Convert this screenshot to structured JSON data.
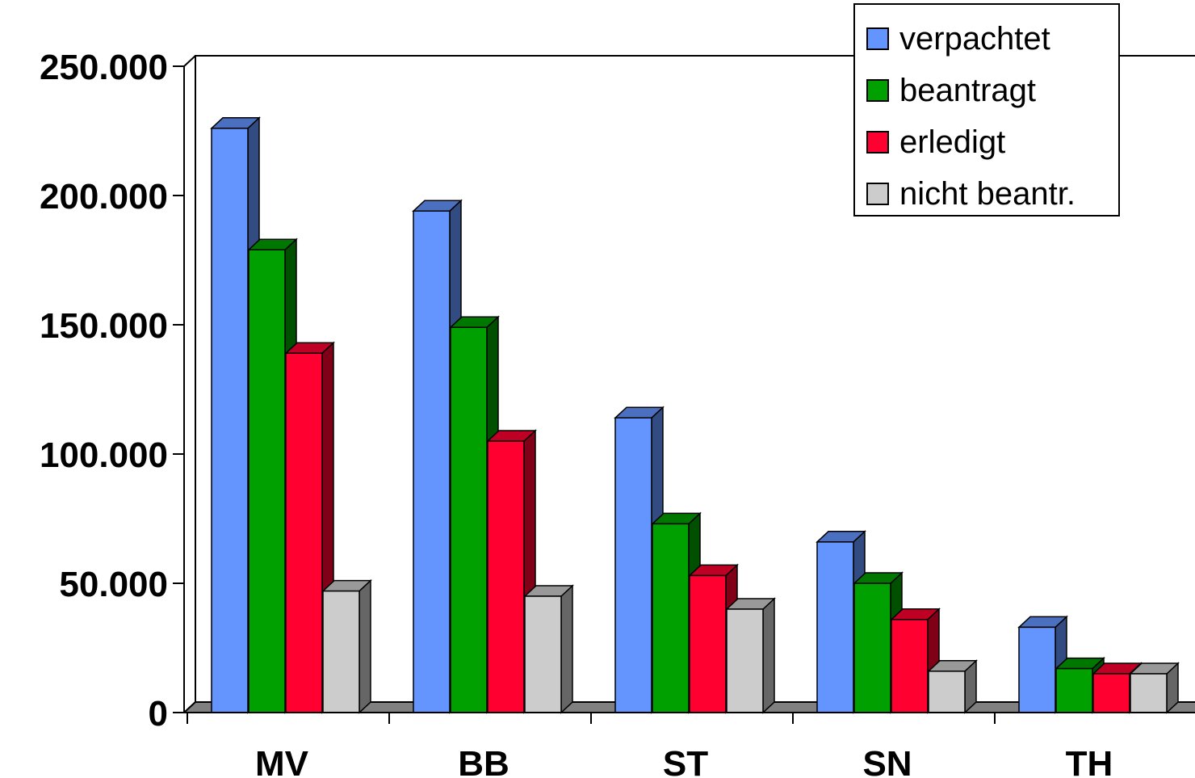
{
  "chart_data": {
    "type": "bar",
    "style": "3d-clustered-column",
    "categories": [
      "MV",
      "BB",
      "ST",
      "SN",
      "TH"
    ],
    "series": [
      {
        "name": "verpachtet",
        "color": "#6495FF",
        "values": [
          226000,
          194000,
          114000,
          66000,
          33000
        ]
      },
      {
        "name": "beantragt",
        "color": "#00A000",
        "values": [
          179000,
          149000,
          73000,
          50000,
          17000
        ]
      },
      {
        "name": "erledigt",
        "color": "#FF0030",
        "values": [
          139000,
          105000,
          53000,
          36000,
          15000
        ]
      },
      {
        "name": "nicht beantr.",
        "color": "#CCCCCC",
        "values": [
          47000,
          45000,
          40000,
          16000,
          15000
        ]
      }
    ],
    "y_ticks": [
      "0",
      "50.000",
      "100.000",
      "150.000",
      "200.000",
      "250.000"
    ],
    "ylim": [
      0,
      250000
    ],
    "legend_position": "top-right",
    "grid": false
  }
}
